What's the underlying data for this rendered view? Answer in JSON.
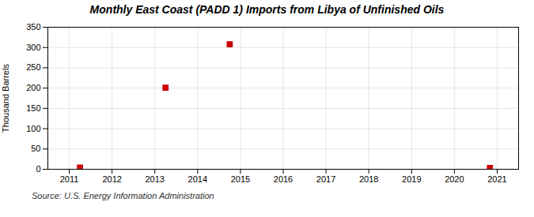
{
  "chart_data": {
    "type": "scatter",
    "title": "Monthly East Coast (PADD 1) Imports from Libya of Unfinished Oils",
    "ylabel": "Thousand Barrels",
    "annotations": [
      "Source: U.S. Energy Information Administration"
    ],
    "x": [
      2011.25,
      2013.25,
      2014.75,
      2020.83
    ],
    "values": [
      4,
      201,
      308,
      3
    ],
    "color": "#cc0000",
    "marker": "square",
    "xlim": [
      2010.5,
      2021.5
    ],
    "xticks": [
      2011,
      2012,
      2013,
      2014,
      2015,
      2016,
      2017,
      2018,
      2019,
      2020,
      2021
    ],
    "ylim": [
      0,
      350
    ],
    "yticks": [
      0,
      50,
      100,
      150,
      200,
      250,
      300,
      350
    ],
    "grid": true
  }
}
